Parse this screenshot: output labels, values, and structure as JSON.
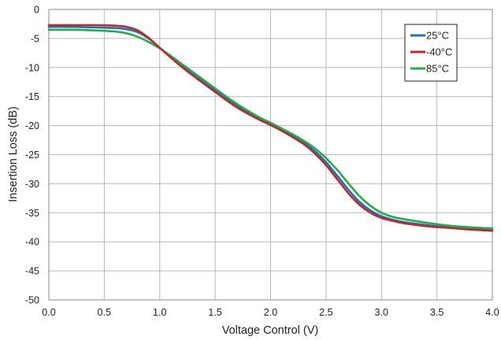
{
  "chart_data": {
    "type": "line",
    "title": "",
    "xlabel": "Voltage Control (V)",
    "ylabel": "Insertion Loss (dB)",
    "xlim": [
      0,
      4
    ],
    "ylim": [
      -50,
      0
    ],
    "xticks": [
      "0.0",
      "0.5",
      "1.0",
      "1.5",
      "2.0",
      "2.5",
      "3.0",
      "3.5",
      "4.0"
    ],
    "yticks": [
      "0",
      "-5",
      "-10",
      "-15",
      "-20",
      "-25",
      "-30",
      "-35",
      "-40",
      "-45",
      "-50"
    ],
    "grid": true,
    "legend_position": "top-right",
    "series": [
      {
        "name": "25°C",
        "color": "#1f6fb4",
        "x": [
          0,
          0.2,
          0.4,
          0.6,
          0.7,
          0.8,
          0.9,
          1.0,
          1.1,
          1.2,
          1.3,
          1.4,
          1.5,
          1.6,
          1.7,
          1.8,
          1.9,
          2.0,
          2.1,
          2.2,
          2.3,
          2.4,
          2.5,
          2.6,
          2.7,
          2.8,
          2.9,
          3.0,
          3.1,
          3.2,
          3.4,
          3.6,
          3.8,
          4.0
        ],
        "values": [
          -3.0,
          -3.0,
          -3.1,
          -3.2,
          -3.4,
          -3.9,
          -5.0,
          -6.6,
          -8.2,
          -9.7,
          -11.1,
          -12.5,
          -13.9,
          -15.3,
          -16.6,
          -17.8,
          -18.8,
          -19.7,
          -20.7,
          -21.7,
          -22.9,
          -24.4,
          -26.3,
          -28.6,
          -31.0,
          -33.1,
          -34.6,
          -35.6,
          -36.2,
          -36.6,
          -37.1,
          -37.5,
          -37.8,
          -38.0
        ]
      },
      {
        "name": "-40°C",
        "color": "#c0282d",
        "x": [
          0,
          0.2,
          0.4,
          0.6,
          0.7,
          0.8,
          0.9,
          1.0,
          1.1,
          1.2,
          1.3,
          1.4,
          1.5,
          1.6,
          1.7,
          1.8,
          1.9,
          2.0,
          2.1,
          2.2,
          2.3,
          2.4,
          2.5,
          2.6,
          2.7,
          2.8,
          2.9,
          3.0,
          3.1,
          3.2,
          3.4,
          3.6,
          3.8,
          4.0
        ],
        "values": [
          -2.7,
          -2.7,
          -2.7,
          -2.8,
          -3.0,
          -3.6,
          -4.9,
          -6.6,
          -8.3,
          -9.9,
          -11.4,
          -12.8,
          -14.2,
          -15.6,
          -16.9,
          -18.0,
          -19.0,
          -19.9,
          -20.9,
          -22.0,
          -23.2,
          -24.8,
          -26.8,
          -29.2,
          -31.6,
          -33.6,
          -35.0,
          -35.9,
          -36.4,
          -36.8,
          -37.3,
          -37.6,
          -37.9,
          -38.1
        ]
      },
      {
        "name": "85°C",
        "color": "#1fae4b",
        "x": [
          0,
          0.2,
          0.4,
          0.6,
          0.7,
          0.8,
          0.9,
          1.0,
          1.1,
          1.2,
          1.3,
          1.4,
          1.5,
          1.6,
          1.7,
          1.8,
          1.9,
          2.0,
          2.1,
          2.2,
          2.3,
          2.4,
          2.5,
          2.6,
          2.7,
          2.8,
          2.9,
          3.0,
          3.1,
          3.2,
          3.4,
          3.6,
          3.8,
          4.0
        ],
        "values": [
          -3.5,
          -3.5,
          -3.6,
          -3.8,
          -4.1,
          -4.7,
          -5.6,
          -6.7,
          -8.0,
          -9.4,
          -10.8,
          -12.2,
          -13.6,
          -15.0,
          -16.3,
          -17.5,
          -18.6,
          -19.5,
          -20.5,
          -21.5,
          -22.6,
          -23.9,
          -25.6,
          -27.6,
          -29.9,
          -32.1,
          -33.8,
          -35.0,
          -35.7,
          -36.1,
          -36.7,
          -37.2,
          -37.5,
          -37.7
        ]
      }
    ]
  }
}
